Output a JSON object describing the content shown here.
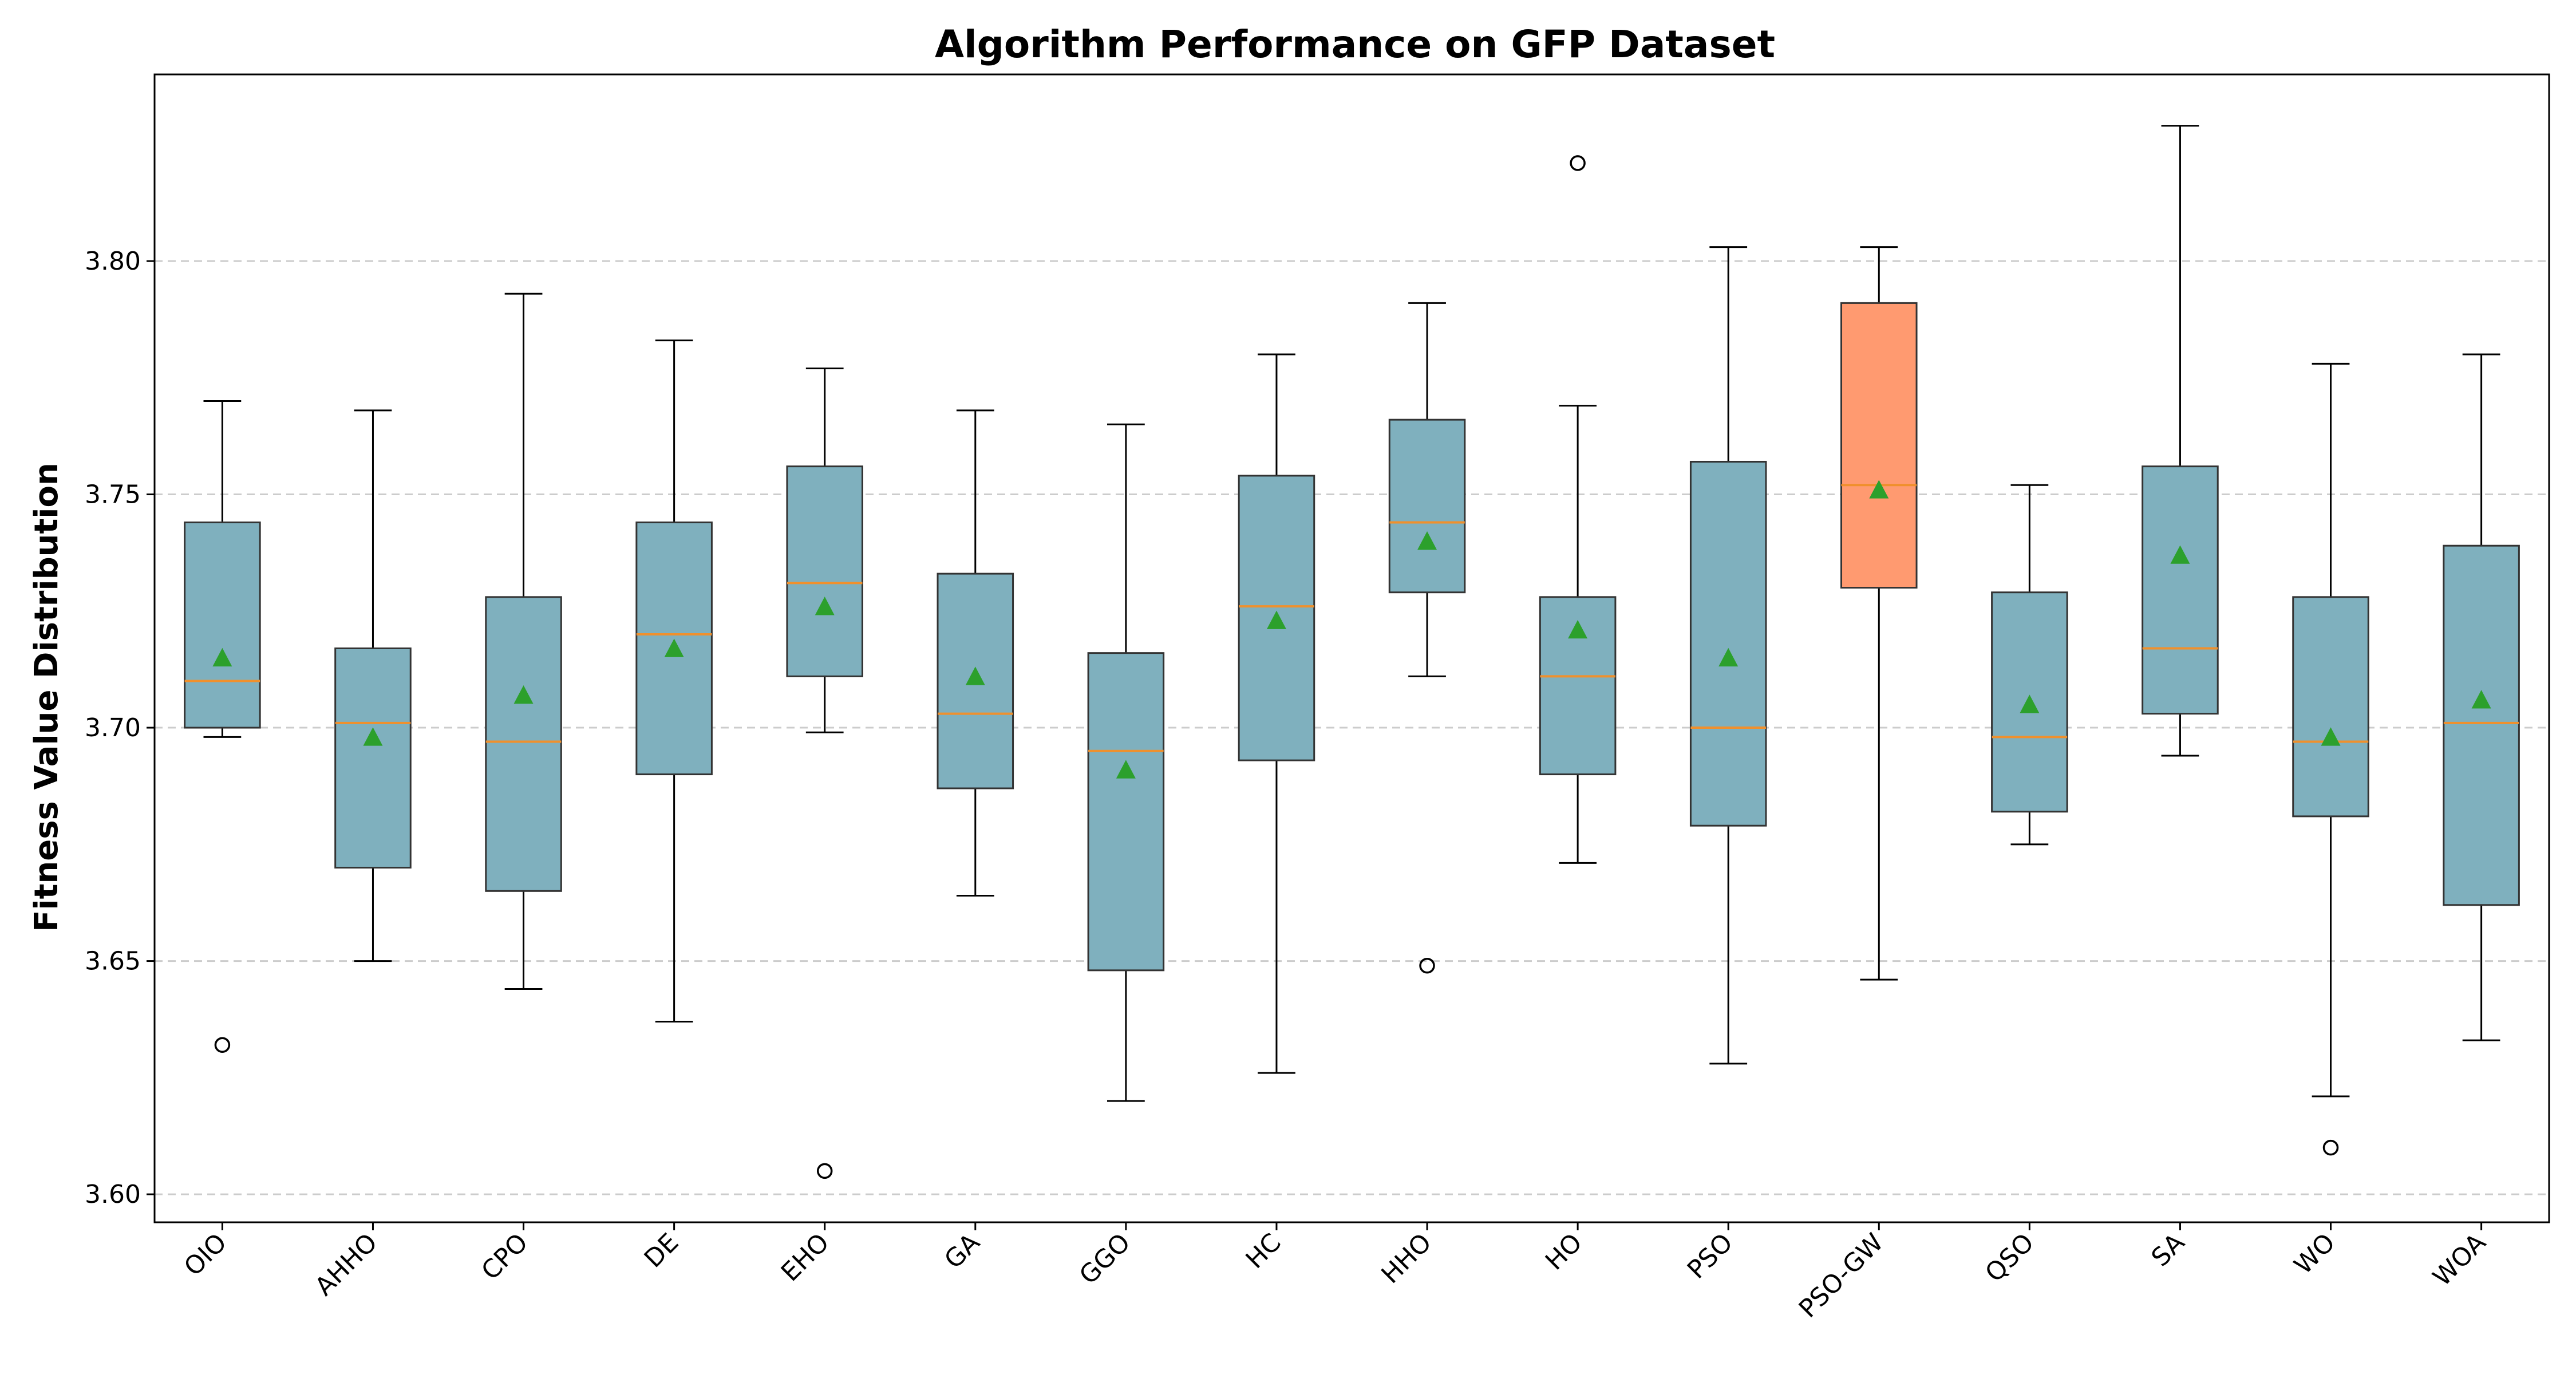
{
  "chart_data": {
    "type": "box",
    "title": "Algorithm Performance on GFP Dataset",
    "xlabel": "",
    "ylabel": "Fitness Value Distribution",
    "ylim": [
      3.594,
      3.84
    ],
    "yticks": [
      "3.60",
      "3.65",
      "3.70",
      "3.75",
      "3.80"
    ],
    "grid": "y-dashed",
    "colors": {
      "box": "#7fb0be",
      "highlight_box": "#ff9a70",
      "median": "#f0902c",
      "mean_marker": "#2ca02c",
      "grid": "#cccccc"
    },
    "categories": [
      "OIO",
      "AHHO",
      "CPO",
      "DE",
      "EHO",
      "GA",
      "GGO",
      "HC",
      "HHO",
      "HO",
      "PSO",
      "PSO-GW",
      "QSO",
      "SA",
      "WO",
      "WOA"
    ],
    "boxes": [
      {
        "label": "OIO",
        "whisker_low": 3.698,
        "q1": 3.7,
        "median": 3.71,
        "q3": 3.744,
        "whisker_high": 3.77,
        "mean": 3.715,
        "outliers": [
          3.632
        ],
        "highlight": false
      },
      {
        "label": "AHHO",
        "whisker_low": 3.65,
        "q1": 3.67,
        "median": 3.701,
        "q3": 3.717,
        "whisker_high": 3.768,
        "mean": 3.698,
        "outliers": [],
        "highlight": false
      },
      {
        "label": "CPO",
        "whisker_low": 3.644,
        "q1": 3.665,
        "median": 3.697,
        "q3": 3.728,
        "whisker_high": 3.793,
        "mean": 3.707,
        "outliers": [],
        "highlight": false
      },
      {
        "label": "DE",
        "whisker_low": 3.637,
        "q1": 3.69,
        "median": 3.72,
        "q3": 3.744,
        "whisker_high": 3.783,
        "mean": 3.717,
        "outliers": [],
        "highlight": false
      },
      {
        "label": "EHO",
        "whisker_low": 3.699,
        "q1": 3.711,
        "median": 3.731,
        "q3": 3.756,
        "whisker_high": 3.777,
        "mean": 3.726,
        "outliers": [
          3.605
        ],
        "highlight": false
      },
      {
        "label": "GA",
        "whisker_low": 3.664,
        "q1": 3.687,
        "median": 3.703,
        "q3": 3.733,
        "whisker_high": 3.768,
        "mean": 3.711,
        "outliers": [],
        "highlight": false
      },
      {
        "label": "GGO",
        "whisker_low": 3.62,
        "q1": 3.648,
        "median": 3.695,
        "q3": 3.716,
        "whisker_high": 3.765,
        "mean": 3.691,
        "outliers": [],
        "highlight": false
      },
      {
        "label": "HC",
        "whisker_low": 3.626,
        "q1": 3.693,
        "median": 3.726,
        "q3": 3.754,
        "whisker_high": 3.78,
        "mean": 3.723,
        "outliers": [],
        "highlight": false
      },
      {
        "label": "HHO",
        "whisker_low": 3.711,
        "q1": 3.729,
        "median": 3.744,
        "q3": 3.766,
        "whisker_high": 3.791,
        "mean": 3.74,
        "outliers": [
          3.649
        ],
        "highlight": false
      },
      {
        "label": "HO",
        "whisker_low": 3.671,
        "q1": 3.69,
        "median": 3.711,
        "q3": 3.728,
        "whisker_high": 3.769,
        "mean": 3.721,
        "outliers": [
          3.821
        ],
        "highlight": false
      },
      {
        "label": "PSO",
        "whisker_low": 3.628,
        "q1": 3.679,
        "median": 3.7,
        "q3": 3.757,
        "whisker_high": 3.803,
        "mean": 3.715,
        "outliers": [],
        "highlight": false
      },
      {
        "label": "PSO-GW",
        "whisker_low": 3.646,
        "q1": 3.73,
        "median": 3.752,
        "q3": 3.791,
        "whisker_high": 3.803,
        "mean": 3.751,
        "outliers": [],
        "highlight": true
      },
      {
        "label": "QSO",
        "whisker_low": 3.675,
        "q1": 3.682,
        "median": 3.698,
        "q3": 3.729,
        "whisker_high": 3.752,
        "mean": 3.705,
        "outliers": [],
        "highlight": false
      },
      {
        "label": "SA",
        "whisker_low": 3.694,
        "q1": 3.703,
        "median": 3.717,
        "q3": 3.756,
        "whisker_high": 3.829,
        "mean": 3.737,
        "outliers": [],
        "highlight": false
      },
      {
        "label": "WO",
        "whisker_low": 3.621,
        "q1": 3.681,
        "median": 3.697,
        "q3": 3.728,
        "whisker_high": 3.778,
        "mean": 3.698,
        "outliers": [
          3.61
        ],
        "highlight": false
      },
      {
        "label": "WOA",
        "whisker_low": 3.633,
        "q1": 3.662,
        "median": 3.701,
        "q3": 3.739,
        "whisker_high": 3.78,
        "mean": 3.706,
        "outliers": [],
        "highlight": false
      }
    ]
  }
}
